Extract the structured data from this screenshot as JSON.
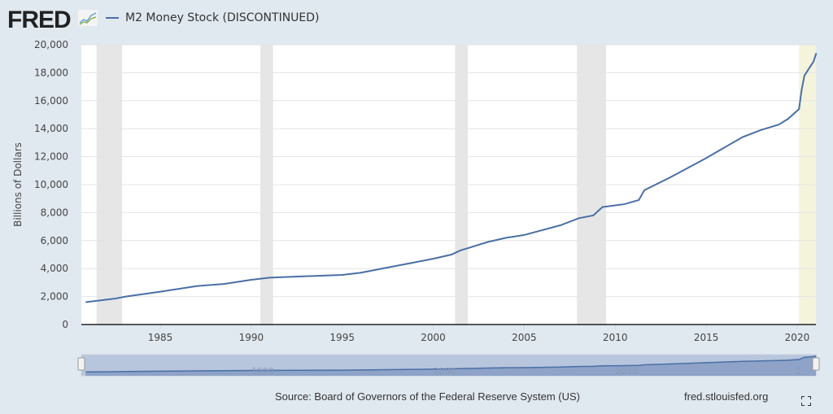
{
  "header": {
    "logo": "FRED",
    "logo_icon": "chart-line-icon",
    "legend_label": "M2 Money Stock (DISCONTINUED)"
  },
  "footer": {
    "source": "Source: Board of Governors of the Federal Reserve System (US)",
    "site": "fred.stlouisfed.org",
    "fullscreen_icon": "expand-icon"
  },
  "colors": {
    "series": "#4a6fa5",
    "recession": "#e6e6e6",
    "background": "#e1e9f0"
  },
  "chart_data": {
    "type": "line",
    "title": "",
    "ylabel": "Billions of Dollars",
    "xlim": [
      1980.9,
      2021.05
    ],
    "ylim": [
      0,
      20000
    ],
    "yticks": [
      0,
      2000,
      4000,
      6000,
      8000,
      10000,
      12000,
      14000,
      16000,
      18000,
      20000
    ],
    "ytick_labels": [
      "0",
      "2,000",
      "4,000",
      "6,000",
      "8,000",
      "10,000",
      "12,000",
      "14,000",
      "16,000",
      "18,000",
      "20,000"
    ],
    "xticks": [
      1985,
      1990,
      1995,
      2000,
      2005,
      2010,
      2015,
      2020
    ],
    "xtick_labels": [
      "1985",
      "1990",
      "1995",
      "2000",
      "2005",
      "2010",
      "2015",
      "2020"
    ],
    "grid": true,
    "legend": "top-left",
    "recessions": [
      [
        1981.5,
        1982.9
      ],
      [
        1990.5,
        1991.2
      ],
      [
        2001.2,
        2001.9
      ],
      [
        2007.9,
        2009.5
      ],
      [
        2020.1,
        2021.05
      ]
    ],
    "series": [
      {
        "name": "M2 Money Stock (DISCONTINUED)",
        "x": [
          1980.9,
          1982.5,
          1983.1,
          1985,
          1987,
          1988.5,
          1990,
          1991,
          1993,
          1995,
          1996,
          1998,
          2000,
          2001,
          2001.5,
          2002,
          2003,
          2004,
          2005,
          2007,
          2008,
          2008.8,
          2009.3,
          2010.5,
          2011.3,
          2011.6,
          2013,
          2015,
          2017,
          2018,
          2019,
          2019.5,
          2020.1,
          2020.25,
          2020.4,
          2020.6,
          2020.9,
          2021.05
        ],
        "values": [
          1600,
          1850,
          2000,
          2350,
          2750,
          2900,
          3200,
          3350,
          3450,
          3550,
          3700,
          4200,
          4700,
          5000,
          5300,
          5500,
          5900,
          6200,
          6400,
          7100,
          7600,
          7800,
          8400,
          8600,
          8900,
          9600,
          10500,
          11900,
          13400,
          13900,
          14300,
          14700,
          15400,
          16800,
          17800,
          18200,
          18800,
          19400
        ]
      }
    ],
    "navigator": {
      "xtick_labels": [
        "1990",
        "2000",
        "2010",
        "2"
      ]
    }
  }
}
